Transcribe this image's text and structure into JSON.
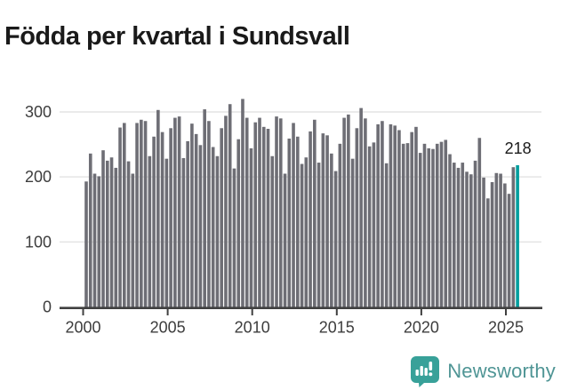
{
  "title": "Födda per kvartal i Sundsvall",
  "branding": {
    "name": "Newsworthy",
    "icon": "newsworthy-logo-icon",
    "icon_color": "#38a199",
    "text_color": "#4f9595"
  },
  "colors": {
    "bar": "#6e6e75",
    "highlight": "#009e9e",
    "axis_line": "#404040",
    "grid_line": "#e4e4e4",
    "tick_label": "#3d3d3d",
    "annotation": "#1a1a1a",
    "title": "#1a1a1a"
  },
  "chart_data": {
    "type": "bar",
    "title": "Födda per kvartal i Sundsvall",
    "xlabel": "",
    "ylabel": "",
    "x_unit": "quarter",
    "start_year": 2000,
    "start_quarter": 1,
    "end_year": 2025,
    "end_quarter": 3,
    "x_tick_labels": [
      "2000",
      "2005",
      "2010",
      "2015",
      "2020",
      "2025"
    ],
    "y_ticks": [
      0,
      100,
      200,
      300
    ],
    "ylim": [
      0,
      330
    ],
    "grid": true,
    "legend": "none",
    "highlight_last_bar": true,
    "last_value_label": "218",
    "values": [
      193,
      236,
      205,
      201,
      241,
      225,
      230,
      214,
      276,
      283,
      224,
      205,
      283,
      288,
      286,
      232,
      262,
      303,
      269,
      228,
      275,
      291,
      293,
      229,
      255,
      282,
      266,
      249,
      304,
      286,
      246,
      232,
      275,
      294,
      312,
      213,
      258,
      320,
      291,
      244,
      284,
      291,
      277,
      274,
      232,
      293,
      290,
      205,
      259,
      283,
      262,
      220,
      230,
      270,
      288,
      222,
      267,
      264,
      236,
      209,
      251,
      291,
      296,
      228,
      275,
      306,
      290,
      247,
      253,
      281,
      286,
      221,
      281,
      279,
      272,
      251,
      252,
      269,
      277,
      237,
      251,
      244,
      243,
      251,
      254,
      257,
      235,
      222,
      214,
      222,
      208,
      204,
      225,
      260,
      199,
      167,
      192,
      206,
      205,
      190,
      174,
      215,
      218
    ]
  }
}
